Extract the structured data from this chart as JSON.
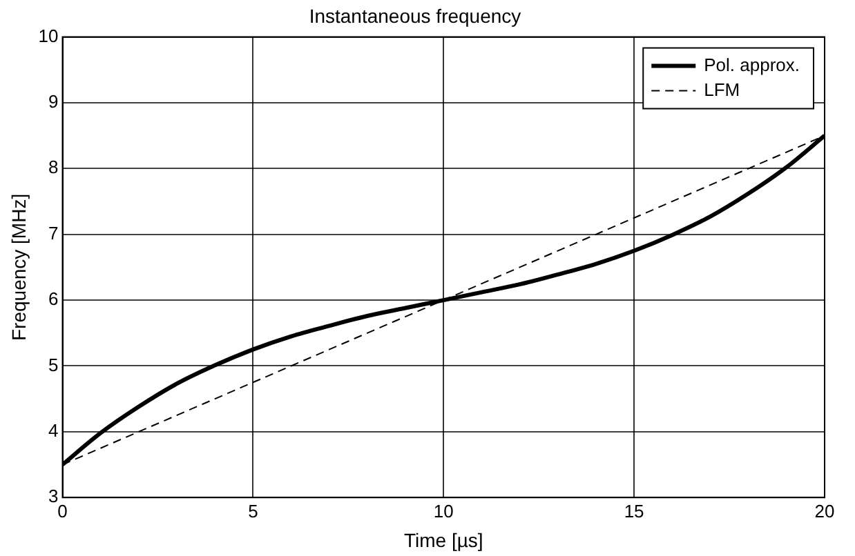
{
  "chart_data": {
    "type": "line",
    "title": "Instantaneous frequency",
    "xlabel": "Time [µs]",
    "ylabel": "Frequency [MHz]",
    "xlim": [
      0,
      20
    ],
    "xticks": [
      0,
      5,
      10,
      15,
      20
    ],
    "ylim": [
      3,
      10
    ],
    "yticks": [
      3,
      4,
      5,
      6,
      7,
      8,
      9,
      10
    ],
    "grid": true,
    "legend": "top right",
    "marker": "none",
    "series": [
      {
        "name": "Pol. approx.",
        "color": "#000000",
        "line_style": "solid",
        "x": [
          0,
          1,
          2,
          3,
          4,
          5,
          6,
          7,
          8,
          9,
          10,
          11,
          12,
          13,
          14,
          15,
          16,
          17,
          18,
          19,
          20
        ],
        "values": [
          3.5,
          3.98,
          4.38,
          4.73,
          5.01,
          5.25,
          5.45,
          5.61,
          5.76,
          5.88,
          6,
          6.12,
          6.24,
          6.39,
          6.55,
          6.75,
          6.99,
          7.27,
          7.62,
          8.02,
          8.5
        ]
      },
      {
        "name": "LFM",
        "color": "#000000",
        "line_style": "dashed",
        "x": [
          0,
          20
        ],
        "values": [
          3.5,
          8.5
        ]
      }
    ]
  }
}
